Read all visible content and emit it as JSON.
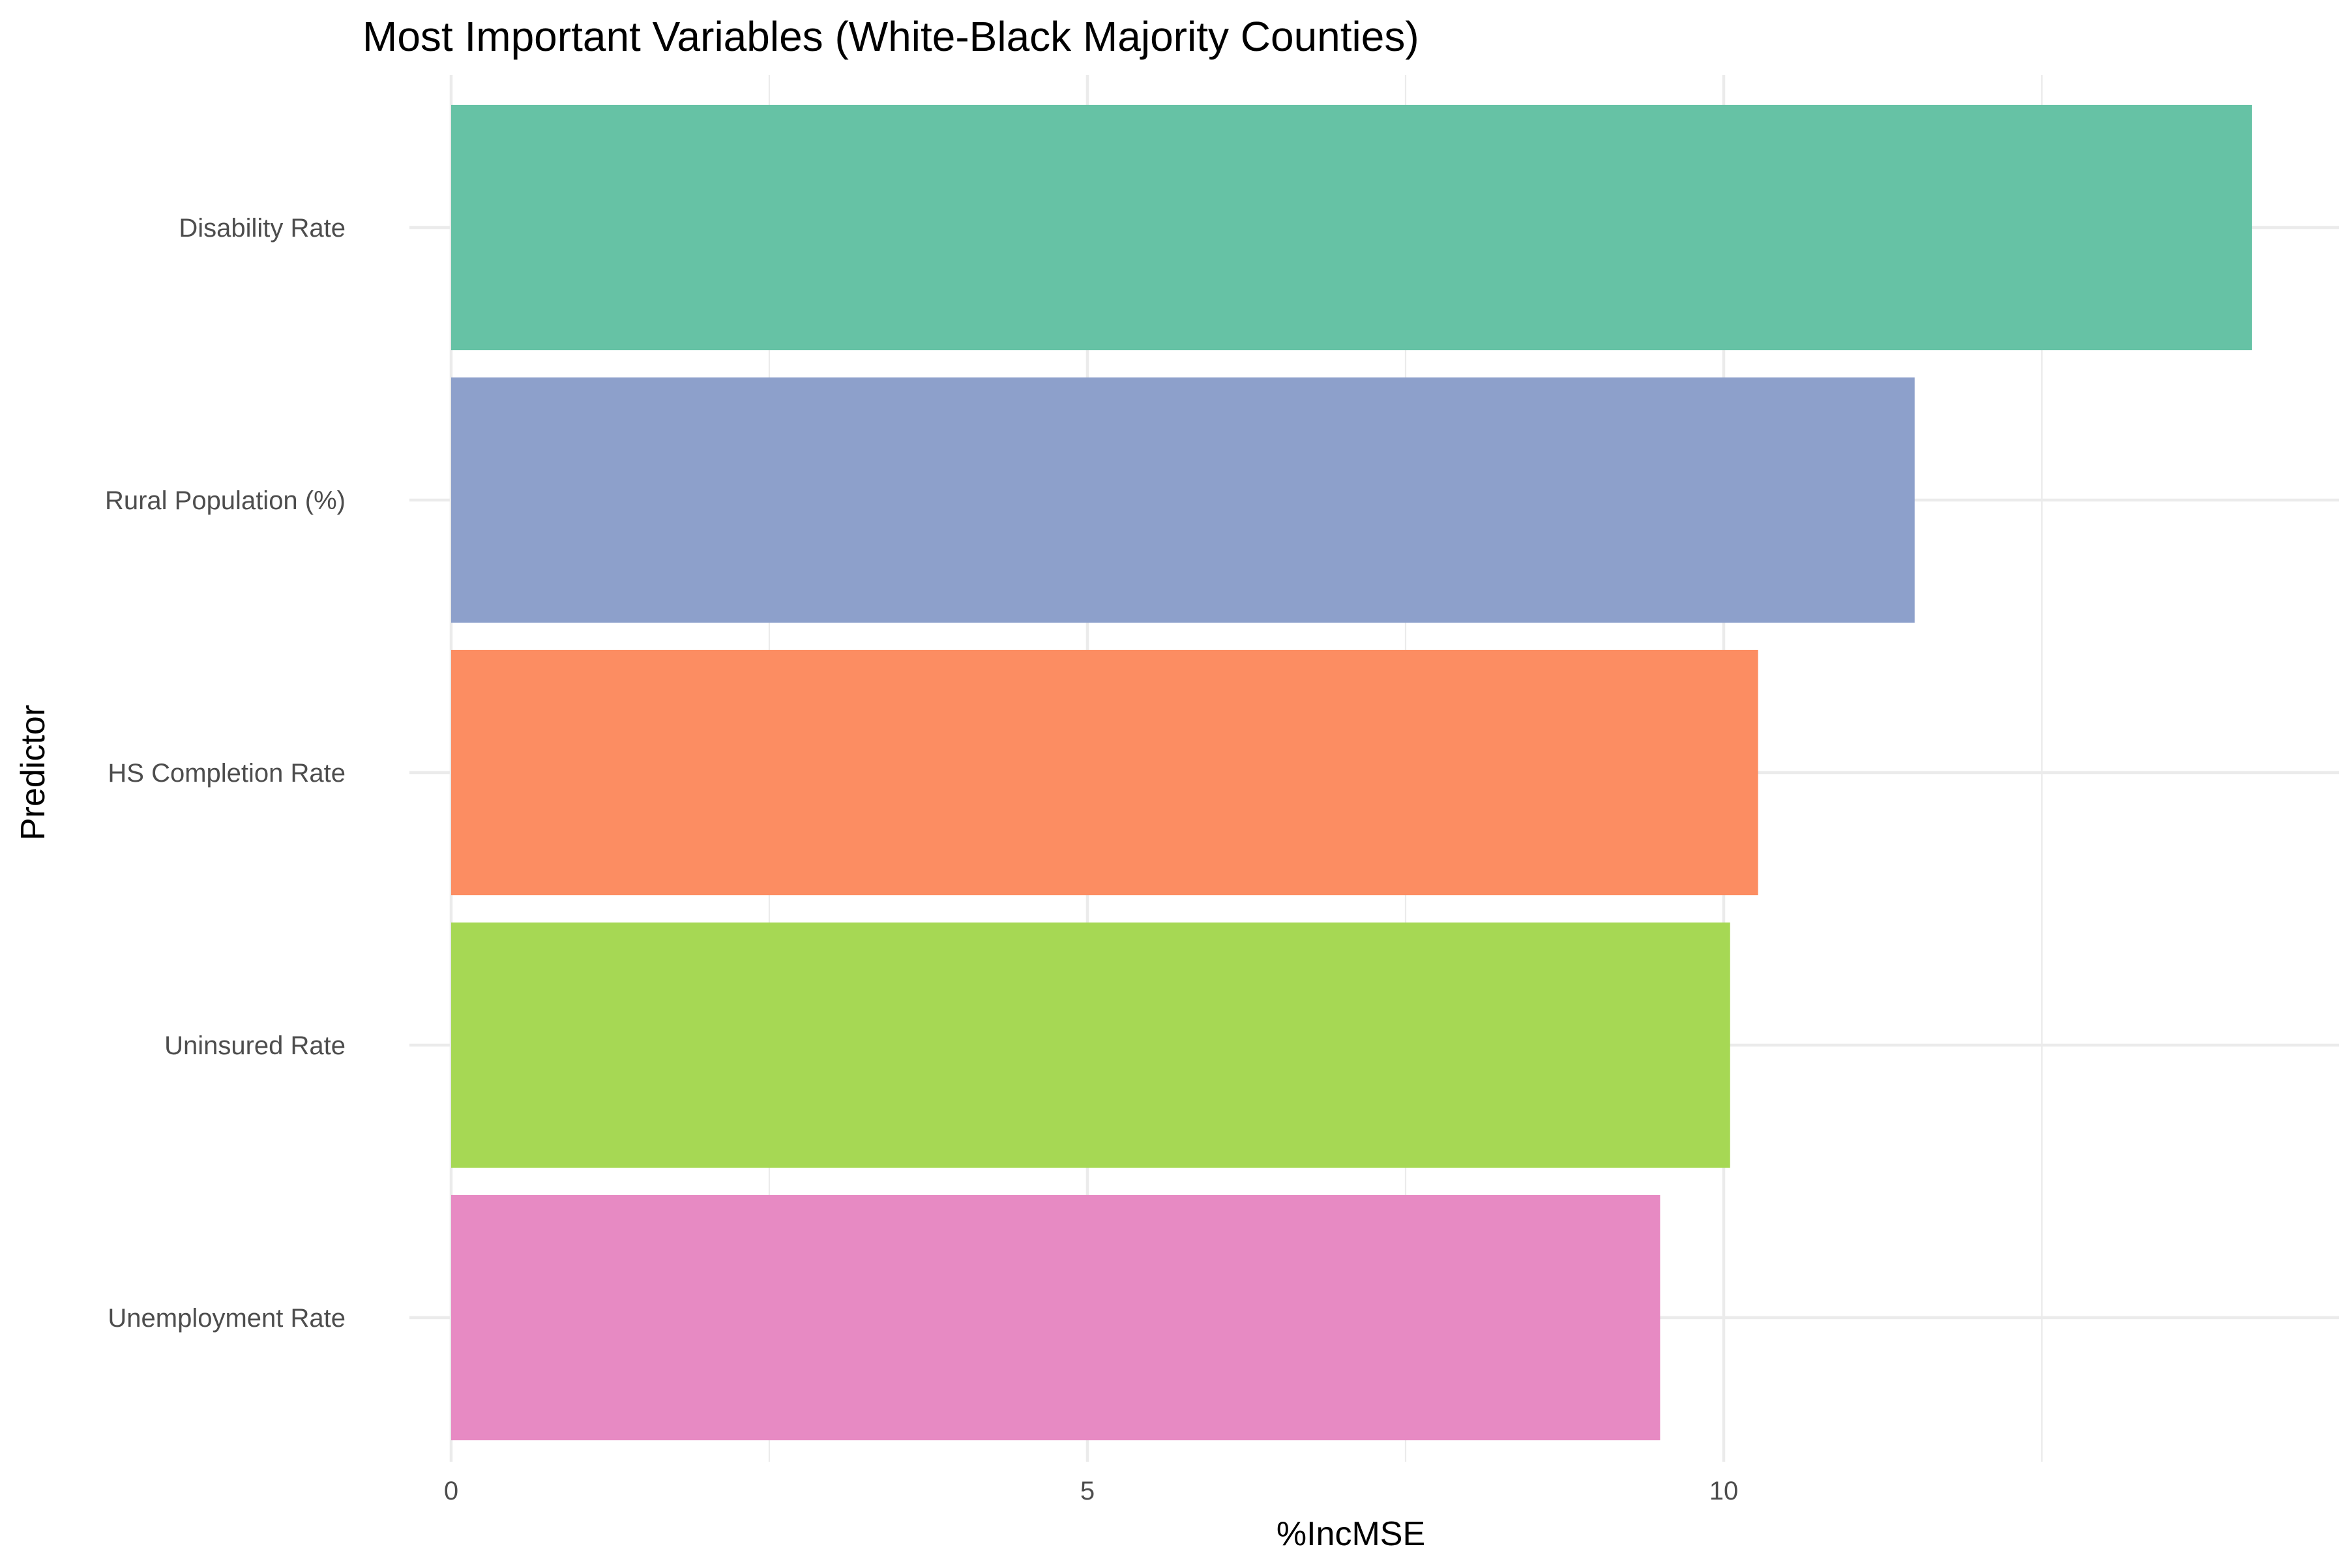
{
  "chart_data": {
    "type": "bar",
    "orientation": "horizontal",
    "title": "Most Important Variables (White-Black Majority Counties)",
    "xlabel": "%IncMSE",
    "ylabel": "Predictor",
    "categories": [
      "Disability Rate",
      "Rural Population (%)",
      "HS Completion Rate",
      "Uninsured Rate",
      "Unemployment Rate"
    ],
    "values": [
      14.15,
      11.5,
      10.27,
      10.05,
      9.5
    ],
    "colors": [
      "#66c2a5",
      "#8da0cb",
      "#fc8d62",
      "#a6d854",
      "#e78ac3"
    ],
    "xlim": [
      0,
      14.9
    ],
    "xticks": [
      0,
      5,
      10
    ],
    "xtick_labels": [
      "0",
      "5",
      "10"
    ],
    "grid": true,
    "legend": "none"
  }
}
